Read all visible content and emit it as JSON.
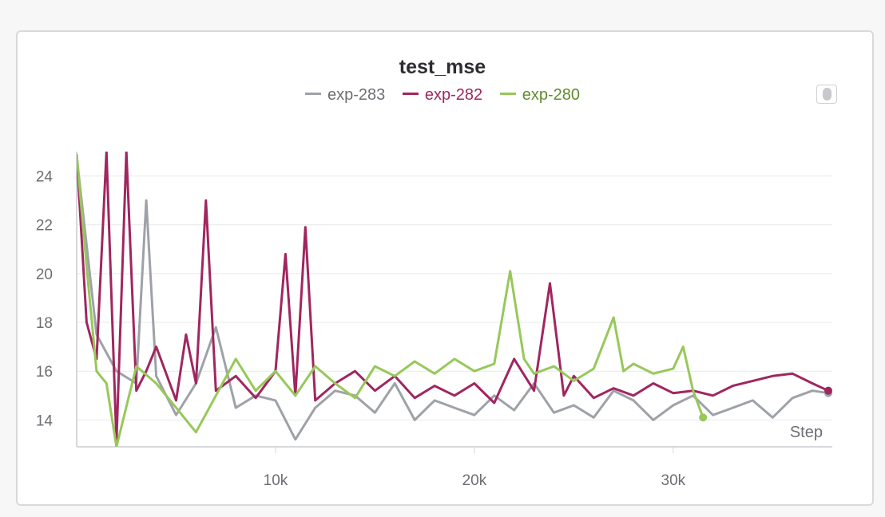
{
  "chart_data": {
    "type": "line",
    "title": "test_mse",
    "xlabel": "Step",
    "ylabel": "",
    "xlim": [
      0,
      38000
    ],
    "ylim": [
      12.9,
      25
    ],
    "x_ticks": [
      10000,
      20000,
      30000
    ],
    "x_tick_labels": [
      "10k",
      "20k",
      "30k"
    ],
    "y_ticks": [
      14,
      16,
      18,
      20,
      22,
      24
    ],
    "y_tick_labels": [
      "14",
      "16",
      "18",
      "20",
      "22",
      "24"
    ],
    "grid": true,
    "legend_position": "top-center",
    "series": [
      {
        "name": "exp-283",
        "color": "#9ea2a8",
        "x": [
          0,
          1000,
          2000,
          3000,
          3500,
          4000,
          5000,
          6000,
          7000,
          8000,
          9000,
          10000,
          11000,
          12000,
          13000,
          14000,
          15000,
          16000,
          17000,
          18000,
          19000,
          20000,
          21000,
          22000,
          23000,
          24000,
          25000,
          26000,
          27000,
          28000,
          29000,
          30000,
          31000,
          32000,
          33000,
          34000,
          35000,
          36000,
          37000,
          37800
        ],
        "y": [
          24.8,
          17.5,
          16.0,
          15.5,
          23.0,
          15.8,
          14.2,
          15.5,
          17.8,
          14.5,
          15.0,
          14.8,
          13.2,
          14.5,
          15.2,
          15.0,
          14.3,
          15.5,
          14.0,
          14.8,
          14.5,
          14.2,
          15.0,
          14.4,
          15.5,
          14.3,
          14.6,
          14.1,
          15.2,
          14.8,
          14.0,
          14.6,
          15.0,
          14.2,
          14.5,
          14.8,
          14.1,
          14.9,
          15.2,
          15.1
        ]
      },
      {
        "name": "exp-282",
        "color": "#a0265f",
        "x": [
          0,
          500,
          1000,
          1500,
          2000,
          2500,
          3000,
          3500,
          4000,
          5000,
          5500,
          6000,
          6500,
          7000,
          8000,
          9000,
          10000,
          10500,
          11000,
          11500,
          12000,
          13000,
          14000,
          15000,
          16000,
          17000,
          18000,
          19000,
          20000,
          21000,
          22000,
          23000,
          23800,
          24500,
          25000,
          26000,
          27000,
          28000,
          29000,
          30000,
          31000,
          32000,
          33000,
          34000,
          35000,
          36000,
          37000,
          37800
        ],
        "y": [
          24.9,
          18.0,
          16.5,
          25.0,
          13.1,
          25.0,
          15.2,
          16.0,
          17.0,
          14.8,
          17.5,
          15.5,
          23.0,
          15.2,
          15.8,
          14.9,
          16.0,
          20.8,
          15.0,
          21.9,
          14.8,
          15.5,
          16.0,
          15.2,
          15.8,
          14.9,
          15.4,
          15.0,
          15.5,
          14.7,
          16.5,
          15.2,
          19.6,
          15.0,
          15.8,
          14.9,
          15.3,
          15.0,
          15.5,
          15.1,
          15.2,
          15.0,
          15.4,
          15.6,
          15.8,
          15.9,
          15.5,
          15.2
        ]
      },
      {
        "name": "exp-280",
        "color": "#97c85a",
        "x": [
          0,
          500,
          1000,
          1500,
          2000,
          3000,
          4000,
          5000,
          6000,
          7000,
          8000,
          9000,
          10000,
          11000,
          12000,
          13000,
          14000,
          15000,
          16000,
          17000,
          18000,
          19000,
          20000,
          21000,
          21800,
          22500,
          23000,
          24000,
          25000,
          26000,
          27000,
          27500,
          28000,
          29000,
          30000,
          30500,
          31000,
          31500
        ],
        "y": [
          24.9,
          20.3,
          16.0,
          15.5,
          12.9,
          16.2,
          15.5,
          14.5,
          13.5,
          15.0,
          16.5,
          15.2,
          16.0,
          15.0,
          16.2,
          15.5,
          14.9,
          16.2,
          15.8,
          16.4,
          15.9,
          16.5,
          16.0,
          16.3,
          20.1,
          16.5,
          15.9,
          16.2,
          15.6,
          16.1,
          18.2,
          16.0,
          16.3,
          15.9,
          16.1,
          17.0,
          15.2,
          14.1
        ]
      }
    ]
  }
}
